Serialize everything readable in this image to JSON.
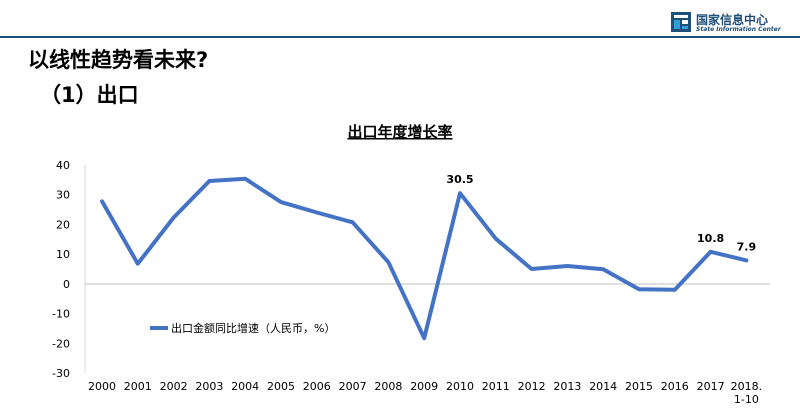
{
  "header": {
    "org_name_cn": "国家信息中心",
    "org_name_en": "State Information Center"
  },
  "page": {
    "title": "以线性趋势看未来?",
    "section": "（1）出口"
  },
  "chart_data": {
    "type": "line",
    "title": "出口年度增长率",
    "categories": [
      "2000",
      "2001",
      "2002",
      "2003",
      "2004",
      "2005",
      "2006",
      "2007",
      "2008",
      "2009",
      "2010",
      "2011",
      "2012",
      "2013",
      "2014",
      "2015",
      "2016",
      "2017",
      "2018.\n1-10"
    ],
    "series": [
      {
        "name": "出口金额同比增速（人民币，%）",
        "values": [
          27.8,
          6.8,
          22.3,
          34.6,
          35.4,
          27.5,
          24.0,
          20.7,
          7.3,
          -18.3,
          30.5,
          15.2,
          5.0,
          6.0,
          4.9,
          -1.8,
          -2.0,
          10.8,
          7.9
        ],
        "color": "#4472c4"
      }
    ],
    "data_labels": [
      {
        "index": 10,
        "text": "30.5"
      },
      {
        "index": 17,
        "text": "10.8"
      },
      {
        "index": 18,
        "text": "7.9"
      }
    ],
    "ylim": [
      -30,
      40
    ],
    "yticks": [
      "40",
      "30",
      "20",
      "10",
      "0",
      "-10",
      "-20",
      "-30"
    ],
    "grid": false,
    "legend_position": "bottom-left"
  }
}
